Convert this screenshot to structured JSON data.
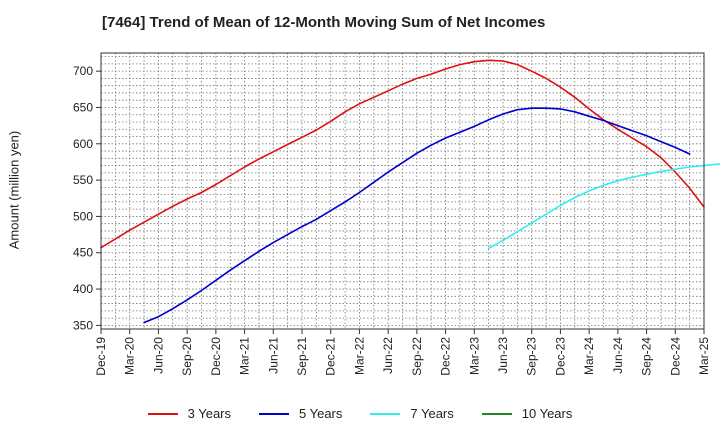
{
  "chart_data": {
    "type": "line",
    "title": "[7464]  Trend of Mean of 12-Month Moving Sum of Net Incomes",
    "ylabel": "Amount (million yen)",
    "xlabel": "",
    "ylim": [
      345,
      725
    ],
    "yticks": [
      350,
      400,
      450,
      500,
      550,
      600,
      650,
      700
    ],
    "xticks": [
      "Dec-19",
      "Mar-20",
      "Jun-20",
      "Sep-20",
      "Dec-20",
      "Mar-21",
      "Jun-21",
      "Sep-21",
      "Dec-21",
      "Mar-22",
      "Jun-22",
      "Sep-22",
      "Dec-22",
      "Mar-23",
      "Jun-23",
      "Sep-23",
      "Dec-23",
      "Mar-24",
      "Jun-24",
      "Sep-24",
      "Dec-24",
      "Mar-25"
    ],
    "grid": true,
    "legend_position": "bottom",
    "series": [
      {
        "name": "3 Years",
        "color": "#dd1111",
        "start_index": 0,
        "values": [
          457,
          469,
          481,
          492,
          503,
          514,
          524,
          533,
          544,
          556,
          568,
          579,
          589,
          599,
          609,
          619,
          631,
          644,
          655,
          664,
          673,
          682,
          690,
          696,
          703,
          709,
          713,
          715,
          714,
          709,
          700,
          690,
          678,
          664,
          648,
          633,
          620,
          608,
          596,
          581,
          561,
          539,
          513
        ]
      },
      {
        "name": "5 Years",
        "color": "#0000cc",
        "start_index": 3,
        "values": [
          354,
          362,
          373,
          385,
          398,
          412,
          426,
          439,
          452,
          464,
          475,
          486,
          496,
          508,
          520,
          533,
          547,
          561,
          574,
          587,
          598,
          608,
          616,
          624,
          633,
          641,
          647,
          649,
          649,
          648,
          644,
          638,
          632,
          625,
          618,
          611,
          603,
          595,
          586
        ]
      },
      {
        "name": "7 Years",
        "color": "#33eeee",
        "start_index": 27,
        "values": [
          456,
          467,
          479,
          491,
          503,
          515,
          526,
          535,
          543,
          549,
          554,
          558,
          562,
          565,
          568,
          570,
          572,
          573,
          573,
          571,
          568,
          566
        ]
      },
      {
        "name": "10 Years",
        "color": "#228822",
        "start_index": 0,
        "values": []
      }
    ]
  }
}
